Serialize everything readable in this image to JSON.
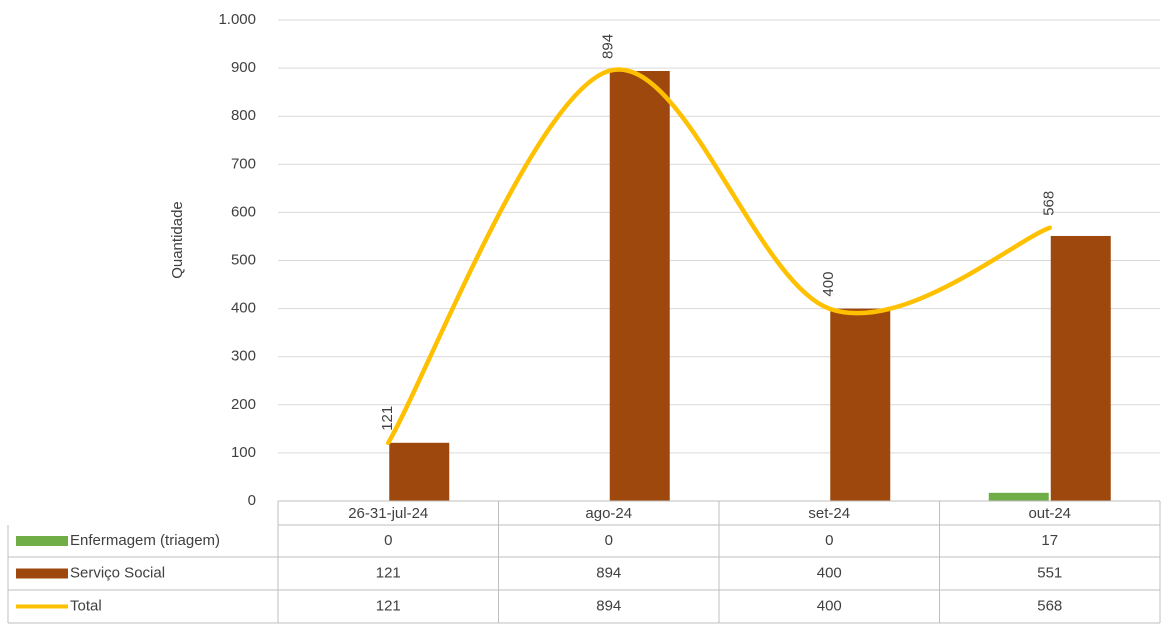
{
  "chart_data": {
    "type": "bar_line_table",
    "y_label": "Quantidade",
    "categories": [
      "26-31-jul-24",
      "ago-24",
      "set-24",
      "out-24"
    ],
    "series": [
      {
        "name": "Enfermagem (triagem)",
        "color": "#70ad47",
        "values": [
          0,
          0,
          0,
          17
        ],
        "kind": "bar"
      },
      {
        "name": "Serviço Social",
        "color": "#9e480e",
        "values": [
          121,
          894,
          400,
          551
        ],
        "kind": "bar"
      },
      {
        "name": "Total",
        "color": "#ffc000",
        "values": [
          121,
          894,
          400,
          568
        ],
        "kind": "line",
        "data_labels": true
      }
    ],
    "ylim": [
      0,
      1000
    ],
    "yticks": [
      0,
      100,
      200,
      300,
      400,
      500,
      600,
      700,
      800,
      900,
      {
        "value": 1000,
        "label": "1.000"
      }
    ],
    "grid": true
  }
}
